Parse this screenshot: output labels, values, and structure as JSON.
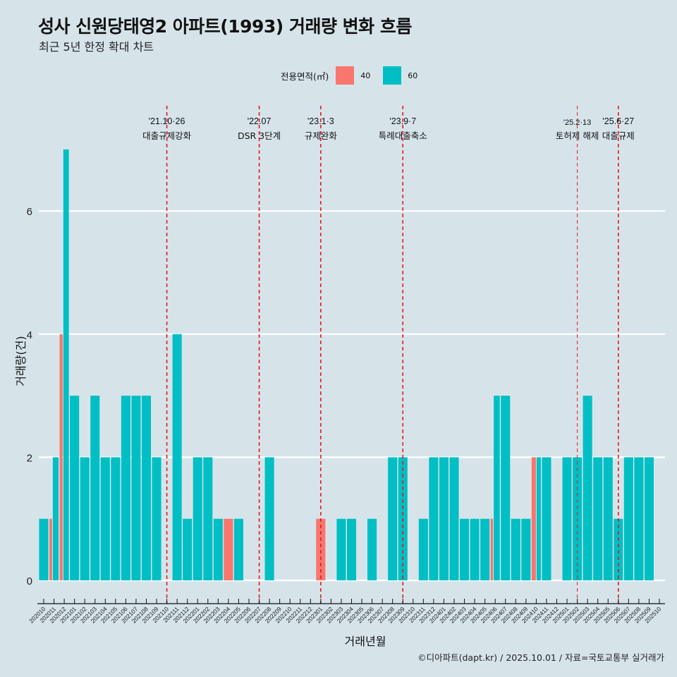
{
  "header": {
    "title": "성사 신원당태영2 아파트(1993) 거래량 변화 흐름",
    "subtitle": "최근 5년 한정 확대 차트"
  },
  "legend": {
    "title": "전용면적(㎡)",
    "items": [
      {
        "label": "40",
        "color": "#F8766D"
      },
      {
        "label": "60",
        "color": "#00BFC4"
      }
    ]
  },
  "caption": "©디아파트(dapt.kr) / 2025.10.01 / 자료=국토교통부 실거래가",
  "chart_data": {
    "type": "bar",
    "title": "성사 신원당태영2 아파트(1993) 거래량 변화 흐름",
    "subtitle": "최근 5년 한정 확대 차트",
    "xlabel": "거래년월",
    "ylabel": "거래량(건)",
    "ylim": [
      0,
      7
    ],
    "yticks": [
      0,
      2,
      4,
      6
    ],
    "grid": true,
    "legend_position": "top",
    "categories": [
      "202010",
      "202011",
      "202012",
      "202101",
      "202102",
      "202103",
      "202104",
      "202105",
      "202106",
      "202107",
      "202108",
      "202109",
      "202110",
      "202111",
      "202112",
      "202201",
      "202202",
      "202203",
      "202204",
      "202205",
      "202206",
      "202207",
      "202208",
      "202209",
      "202210",
      "202211",
      "202212",
      "202301",
      "202302",
      "202303",
      "202304",
      "202305",
      "202306",
      "202307",
      "202308",
      "202309",
      "202310",
      "202311",
      "202312",
      "202401",
      "202402",
      "202403",
      "202404",
      "202405",
      "202406",
      "202407",
      "202408",
      "202409",
      "202410",
      "202411",
      "202412",
      "202501",
      "202502",
      "202503",
      "202504",
      "202505",
      "202506",
      "202507",
      "202508",
      "202509",
      "202510"
    ],
    "series": [
      {
        "name": "40",
        "color": "#F8766D",
        "values": [
          0,
          1,
          4,
          0,
          0,
          0,
          0,
          0,
          0,
          0,
          0,
          0,
          0,
          0,
          0,
          0,
          0,
          0,
          1,
          0,
          0,
          0,
          0,
          0,
          0,
          0,
          0,
          1,
          0,
          0,
          0,
          0,
          0,
          0,
          0,
          0,
          0,
          0,
          0,
          0,
          0,
          0,
          0,
          0,
          1,
          0,
          0,
          0,
          2,
          0,
          0,
          0,
          0,
          0,
          0,
          0,
          0,
          0,
          0,
          0,
          0
        ]
      },
      {
        "name": "60",
        "color": "#00BFC4",
        "values": [
          1,
          2,
          7,
          3,
          2,
          3,
          2,
          2,
          3,
          3,
          3,
          2,
          0,
          4,
          1,
          2,
          2,
          1,
          0,
          1,
          0,
          0,
          2,
          0,
          0,
          0,
          0,
          0,
          0,
          1,
          1,
          0,
          1,
          0,
          2,
          2,
          0,
          1,
          2,
          2,
          2,
          1,
          1,
          1,
          3,
          3,
          1,
          1,
          2,
          2,
          0,
          2,
          2,
          3,
          2,
          2,
          1,
          2,
          2,
          2,
          0
        ]
      }
    ],
    "events": [
      {
        "month": "202110",
        "date": "'21.10·26",
        "label": "대출규제강화"
      },
      {
        "month": "202207",
        "date": "'22.07",
        "label": "DSR 3단계"
      },
      {
        "month": "202301",
        "date": "'23.1·3",
        "label": "규제완화"
      },
      {
        "month": "202309",
        "date": "'23.9·7",
        "label": "특례대출축소"
      },
      {
        "month": "202502",
        "date": "'25.2·13",
        "label": "토허제 해제",
        "thin": true
      },
      {
        "month": "202506",
        "date": "'25.6·27",
        "label": "대출규제"
      }
    ],
    "event_line_color": "#E41A1C"
  }
}
